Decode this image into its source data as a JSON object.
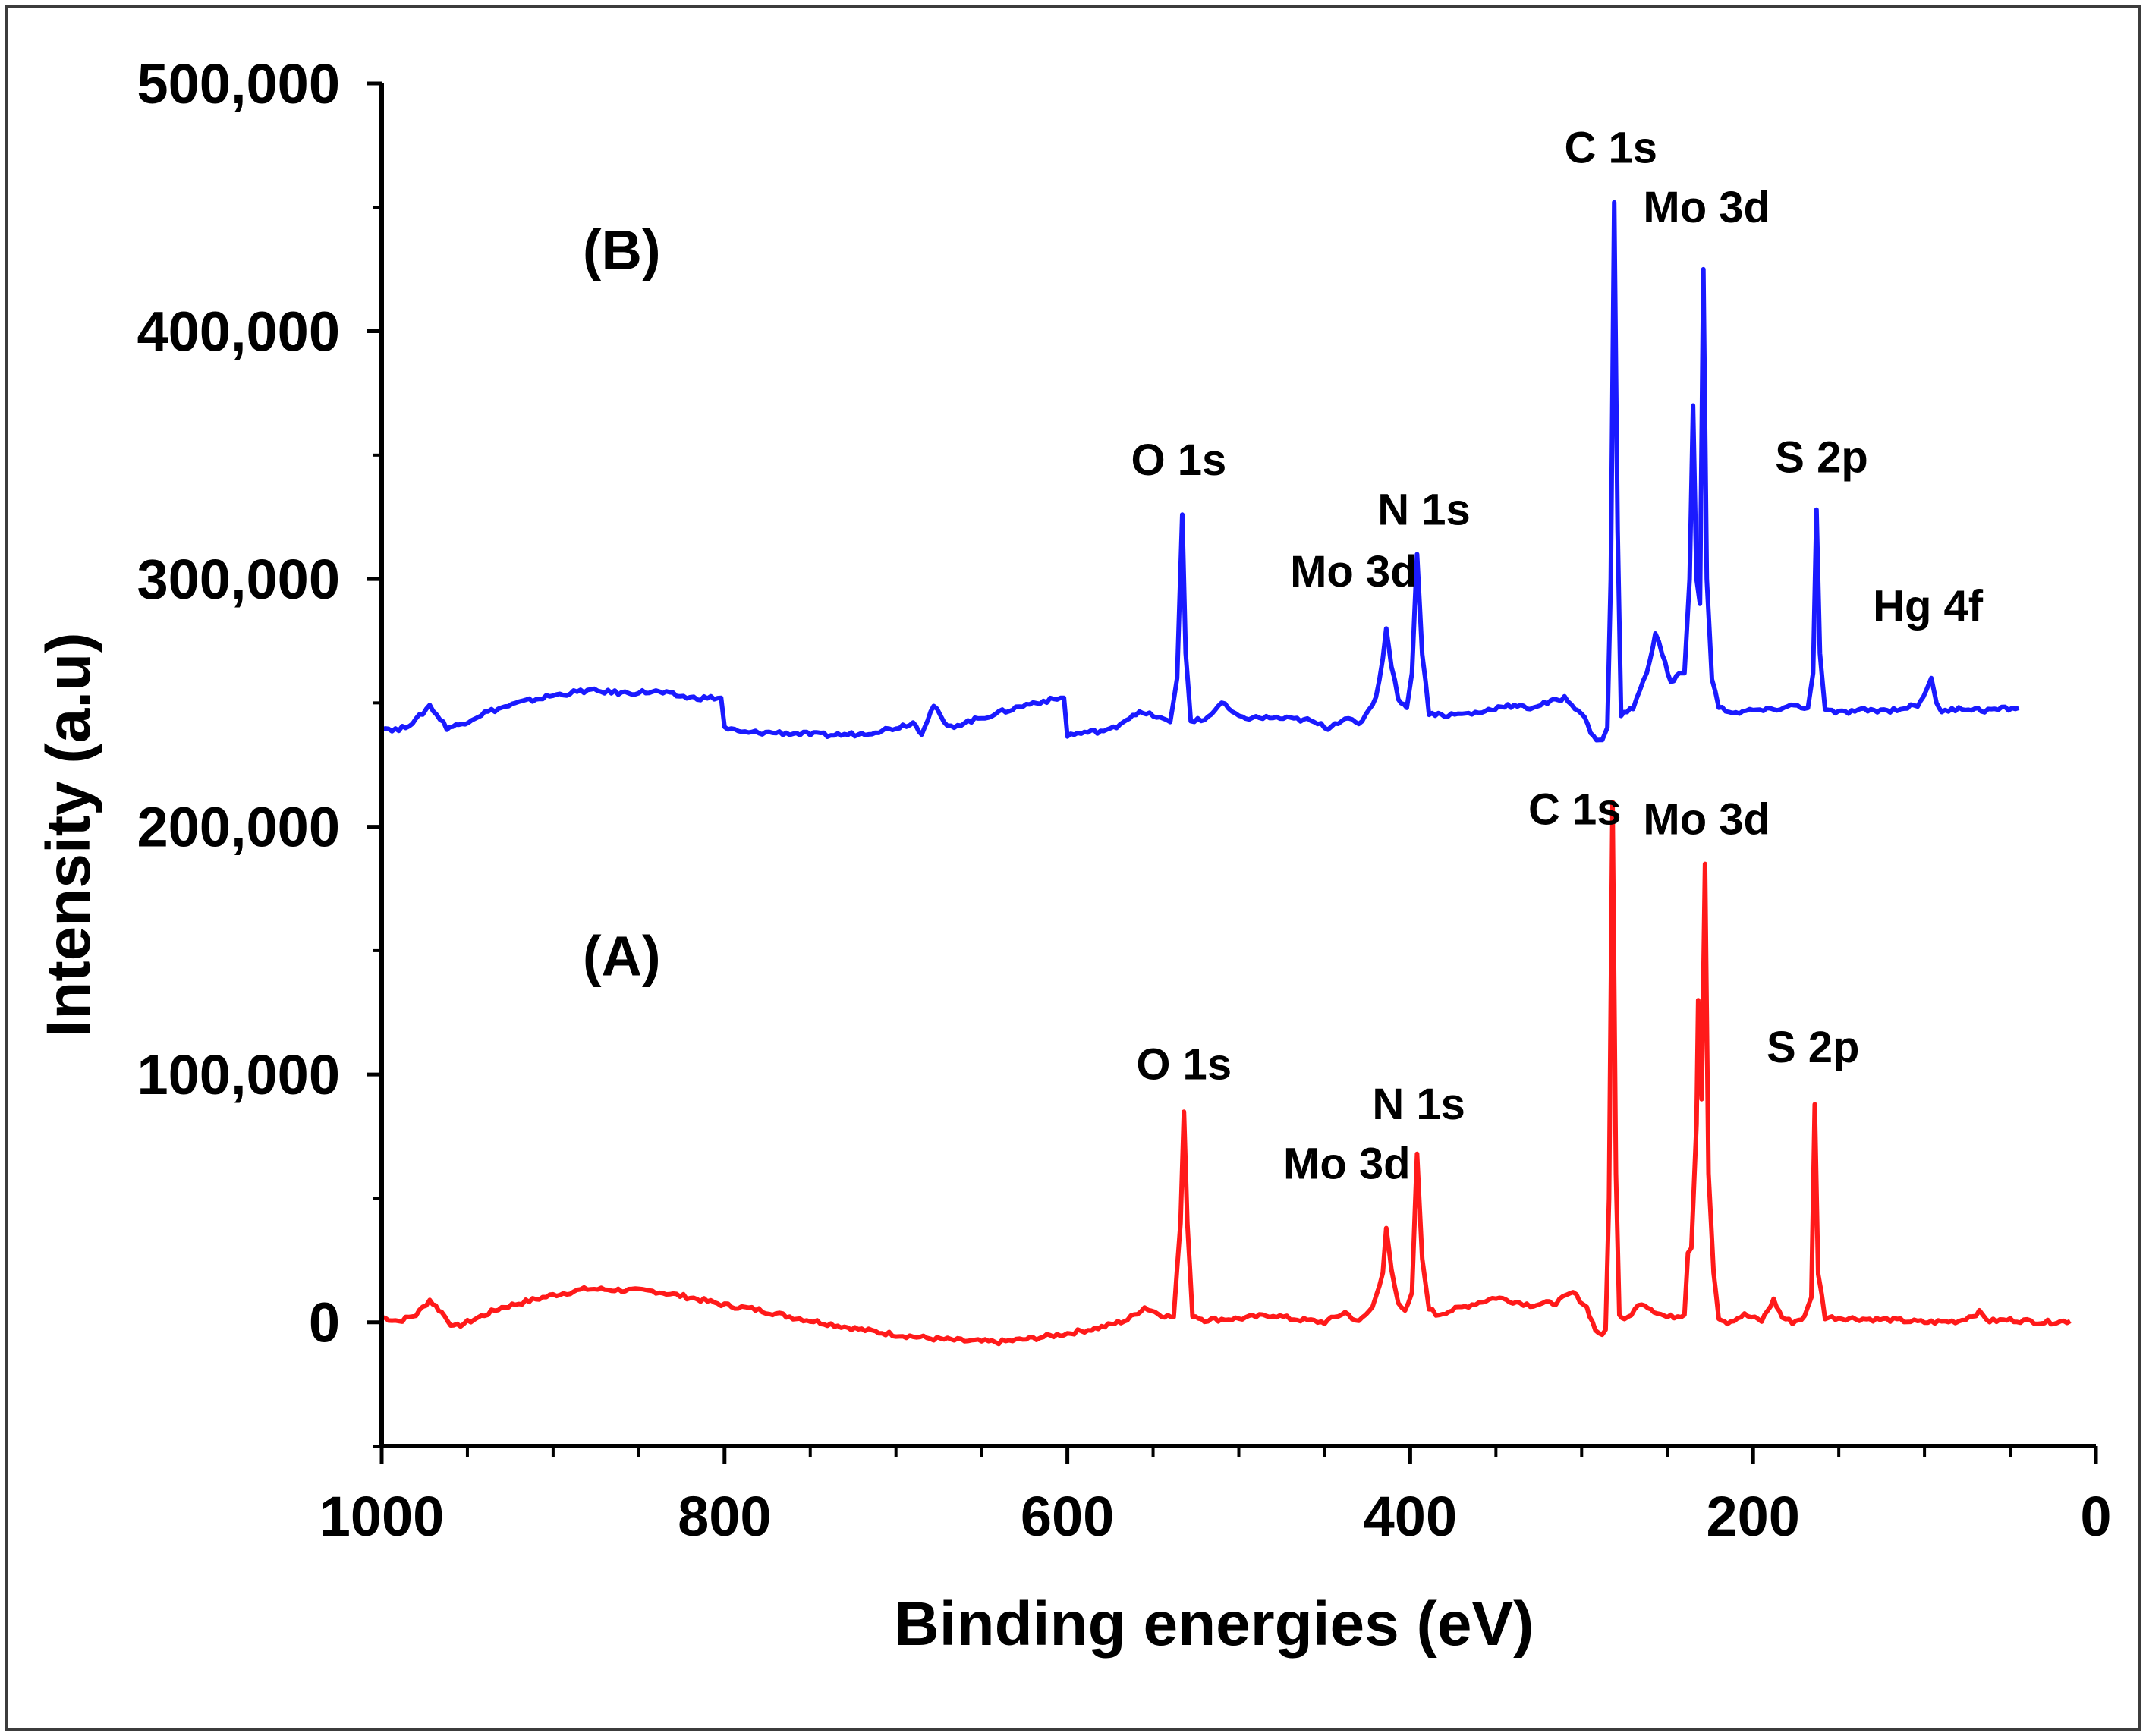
{
  "chart_data": {
    "type": "line",
    "title": "",
    "xlabel": "Binding energies (eV)",
    "ylabel": "Intensity (a.u)",
    "xlim": [
      1000,
      0
    ],
    "ylim": [
      -50000,
      500000
    ],
    "x_ticks": [
      1000,
      800,
      600,
      400,
      200,
      0
    ],
    "x_tick_labels": [
      "1000",
      "800",
      "600",
      "400",
      "200",
      "0"
    ],
    "y_ticks": [
      0,
      100000,
      200000,
      300000,
      400000,
      500000
    ],
    "y_tick_labels": [
      "0",
      "100,000",
      "200,000",
      "300,000",
      "400,000",
      "500,000"
    ],
    "grid": false,
    "legend": "none",
    "series": [
      {
        "name": "(A)",
        "color": "#ff1a1a",
        "points": [
          [
            1000,
            2000
          ],
          [
            990,
            500
          ],
          [
            980,
            3000
          ],
          [
            972,
            9000
          ],
          [
            965,
            4000
          ],
          [
            958,
            -2000
          ],
          [
            950,
            0
          ],
          [
            930,
            6000
          ],
          [
            900,
            11000
          ],
          [
            880,
            13500
          ],
          [
            860,
            13000
          ],
          [
            840,
            12500
          ],
          [
            820,
            10000
          ],
          [
            800,
            7000
          ],
          [
            780,
            5000
          ],
          [
            760,
            2000
          ],
          [
            740,
            -500
          ],
          [
            720,
            -3000
          ],
          [
            700,
            -5000
          ],
          [
            680,
            -6500
          ],
          [
            660,
            -7500
          ],
          [
            640,
            -8000
          ],
          [
            620,
            -6500
          ],
          [
            600,
            -4500
          ],
          [
            580,
            -2000
          ],
          [
            565,
            1000
          ],
          [
            555,
            6000
          ],
          [
            545,
            3000
          ],
          [
            538,
            2000
          ],
          [
            534,
            40000
          ],
          [
            532,
            85000
          ],
          [
            530,
            40000
          ],
          [
            527,
            3000
          ],
          [
            520,
            1000
          ],
          [
            500,
            1500
          ],
          [
            480,
            3000
          ],
          [
            470,
            1500
          ],
          [
            450,
            0
          ],
          [
            438,
            4000
          ],
          [
            430,
            0
          ],
          [
            422,
            6000
          ],
          [
            416,
            20000
          ],
          [
            414,
            38000
          ],
          [
            411,
            22000
          ],
          [
            407,
            7000
          ],
          [
            403,
            4000
          ],
          [
            399,
            12000
          ],
          [
            396,
            68000
          ],
          [
            393,
            25000
          ],
          [
            389,
            6000
          ],
          [
            385,
            3000
          ],
          [
            370,
            6000
          ],
          [
            350,
            10000
          ],
          [
            330,
            7000
          ],
          [
            315,
            8000
          ],
          [
            305,
            12000
          ],
          [
            297,
            6000
          ],
          [
            292,
            -3000
          ],
          [
            288,
            -5000
          ],
          [
            286,
            -3000
          ],
          [
            284,
            50000
          ],
          [
            282,
            210000
          ],
          [
            280,
            60000
          ],
          [
            278,
            3000
          ],
          [
            275,
            500
          ],
          [
            265,
            8000
          ],
          [
            256,
            4000
          ],
          [
            250,
            2000
          ],
          [
            240,
            3000
          ],
          [
            238,
            28000
          ],
          [
            236,
            30000
          ],
          [
            233,
            80000
          ],
          [
            232,
            130000
          ],
          [
            230,
            90000
          ],
          [
            228,
            185000
          ],
          [
            226,
            60000
          ],
          [
            223,
            20000
          ],
          [
            220,
            2000
          ],
          [
            215,
            0
          ],
          [
            205,
            3000
          ],
          [
            195,
            500
          ],
          [
            188,
            9000
          ],
          [
            183,
            2000
          ],
          [
            177,
            0
          ],
          [
            170,
            2000
          ],
          [
            166,
            10000
          ],
          [
            164,
            88000
          ],
          [
            162,
            20000
          ],
          [
            158,
            2000
          ],
          [
            140,
            1500
          ],
          [
            120,
            1000
          ],
          [
            100,
            0
          ],
          [
            80,
            500
          ],
          [
            68,
            4000
          ],
          [
            62,
            500
          ],
          [
            50,
            1000
          ],
          [
            30,
            0
          ],
          [
            15,
            500
          ]
        ]
      },
      {
        "name": "(B)",
        "color": "#1a1aff",
        "points": [
          [
            1000,
            240000
          ],
          [
            990,
            239000
          ],
          [
            980,
            243000
          ],
          [
            972,
            249000
          ],
          [
            962,
            240000
          ],
          [
            955,
            241000
          ],
          [
            940,
            246000
          ],
          [
            920,
            250000
          ],
          [
            900,
            253000
          ],
          [
            880,
            255000
          ],
          [
            860,
            254000
          ],
          [
            840,
            254500
          ],
          [
            820,
            252000
          ],
          [
            802,
            252000
          ],
          [
            800,
            240000
          ],
          [
            790,
            238000
          ],
          [
            770,
            238000
          ],
          [
            740,
            237000
          ],
          [
            720,
            237500
          ],
          [
            700,
            240000
          ],
          [
            690,
            242000
          ],
          [
            685,
            238000
          ],
          [
            678,
            249000
          ],
          [
            670,
            240000
          ],
          [
            660,
            242000
          ],
          [
            640,
            246000
          ],
          [
            620,
            250000
          ],
          [
            602,
            252000
          ],
          [
            600,
            237000
          ],
          [
            590,
            238000
          ],
          [
            575,
            239000
          ],
          [
            560,
            246000
          ],
          [
            550,
            245000
          ],
          [
            540,
            242000
          ],
          [
            536,
            260000
          ],
          [
            533,
            326000
          ],
          [
            531,
            270000
          ],
          [
            528,
            243000
          ],
          [
            520,
            243000
          ],
          [
            510,
            250000
          ],
          [
            500,
            244000
          ],
          [
            480,
            244000
          ],
          [
            460,
            243000
          ],
          [
            448,
            240000
          ],
          [
            438,
            244000
          ],
          [
            430,
            241000
          ],
          [
            420,
            252000
          ],
          [
            416,
            268000
          ],
          [
            414,
            280000
          ],
          [
            411,
            265000
          ],
          [
            407,
            252000
          ],
          [
            402,
            248000
          ],
          [
            399,
            262000
          ],
          [
            396,
            310000
          ],
          [
            393,
            270000
          ],
          [
            389,
            246000
          ],
          [
            380,
            245000
          ],
          [
            360,
            246000
          ],
          [
            345,
            249000
          ],
          [
            330,
            248000
          ],
          [
            320,
            250000
          ],
          [
            310,
            252000
          ],
          [
            300,
            246000
          ],
          [
            293,
            236000
          ],
          [
            288,
            235000
          ],
          [
            285,
            240000
          ],
          [
            283,
            300000
          ],
          [
            281,
            452000
          ],
          [
            279,
            320000
          ],
          [
            277,
            245000
          ],
          [
            270,
            248000
          ],
          [
            262,
            262000
          ],
          [
            257,
            278000
          ],
          [
            253,
            270000
          ],
          [
            248,
            258000
          ],
          [
            243,
            262000
          ],
          [
            240,
            262000
          ],
          [
            237,
            300000
          ],
          [
            235,
            370000
          ],
          [
            233,
            300000
          ],
          [
            231,
            290000
          ],
          [
            229,
            425000
          ],
          [
            227,
            300000
          ],
          [
            224,
            260000
          ],
          [
            220,
            248000
          ],
          [
            210,
            246000
          ],
          [
            200,
            247000
          ],
          [
            190,
            247000
          ],
          [
            176,
            249000
          ],
          [
            168,
            248000
          ],
          [
            165,
            262000
          ],
          [
            163,
            328000
          ],
          [
            161,
            270000
          ],
          [
            158,
            247000
          ],
          [
            150,
            246000
          ],
          [
            135,
            247000
          ],
          [
            120,
            247000
          ],
          [
            104,
            249000
          ],
          [
            99,
            255000
          ],
          [
            96,
            260000
          ],
          [
            93,
            250000
          ],
          [
            90,
            246000
          ],
          [
            80,
            248000
          ],
          [
            65,
            247000
          ],
          [
            45,
            248000
          ]
        ]
      }
    ],
    "annotations": [
      {
        "text": "(B)",
        "x": 860,
        "y": 425000,
        "kind": "panel"
      },
      {
        "text": "(A)",
        "x": 860,
        "y": 140000,
        "kind": "panel"
      },
      {
        "text": "C 1s",
        "x": 283,
        "y": 468000,
        "kind": "peak"
      },
      {
        "text": "Mo 3d",
        "x": 227,
        "y": 444000,
        "kind": "peak"
      },
      {
        "text": "O 1s",
        "x": 535,
        "y": 342000,
        "kind": "peak"
      },
      {
        "text": "N 1s",
        "x": 392,
        "y": 322000,
        "kind": "peak"
      },
      {
        "text": "Mo 3d",
        "x": 433,
        "y": 297000,
        "kind": "peak"
      },
      {
        "text": "S 2p",
        "x": 160,
        "y": 343000,
        "kind": "peak"
      },
      {
        "text": "Hg 4f",
        "x": 98,
        "y": 283000,
        "kind": "peak"
      },
      {
        "text": "C 1s",
        "x": 304,
        "y": 201000,
        "kind": "peak"
      },
      {
        "text": "Mo 3d",
        "x": 227,
        "y": 197000,
        "kind": "peak"
      },
      {
        "text": "O 1s",
        "x": 532,
        "y": 98000,
        "kind": "peak"
      },
      {
        "text": "N 1s",
        "x": 395,
        "y": 82000,
        "kind": "peak"
      },
      {
        "text": "Mo 3d",
        "x": 437,
        "y": 58000,
        "kind": "peak"
      },
      {
        "text": "S 2p",
        "x": 165,
        "y": 105000,
        "kind": "peak"
      }
    ]
  }
}
